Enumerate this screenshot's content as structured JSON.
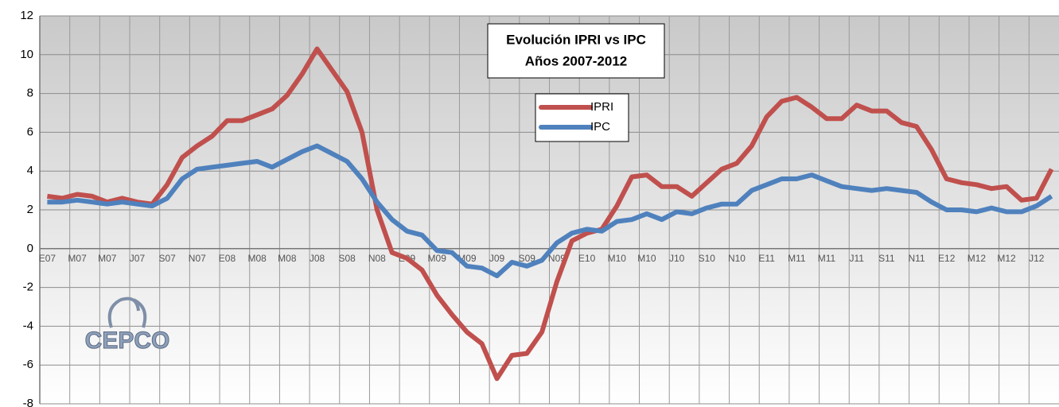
{
  "chart_data": {
    "type": "line",
    "title": "Evolución IPRI vs IPC",
    "subtitle": "Años 2007-2012",
    "categories": [
      "E07",
      null,
      "M07",
      null,
      "M07",
      null,
      "J07",
      null,
      "S07",
      null,
      "N07",
      null,
      "E08",
      null,
      "M08",
      null,
      "M08",
      null,
      "J08",
      null,
      "S08",
      null,
      "N08",
      null,
      "E09",
      null,
      "M09",
      null,
      "M09",
      null,
      "J09",
      null,
      "S09",
      null,
      "N09",
      null,
      "E10",
      null,
      "M10",
      null,
      "M10",
      null,
      "J10",
      null,
      "S10",
      null,
      "N10",
      null,
      "E11",
      null,
      "M11",
      null,
      "M11",
      null,
      "J11",
      null,
      "S11",
      null,
      "N11",
      null,
      "E12",
      null,
      "M12",
      null,
      "M12",
      null,
      "J12",
      null
    ],
    "series": [
      {
        "name": "IPRI",
        "color": "#c0504d",
        "values": [
          2.7,
          2.6,
          2.8,
          2.7,
          2.4,
          2.6,
          2.4,
          2.3,
          3.3,
          4.7,
          5.3,
          5.8,
          6.6,
          6.6,
          6.9,
          7.2,
          7.9,
          9.0,
          10.3,
          9.2,
          8.1,
          6.0,
          2.0,
          -0.2,
          -0.5,
          -1.1,
          -2.4,
          -3.4,
          -4.3,
          -4.9,
          -6.7,
          -5.5,
          -5.4,
          -4.3,
          -1.7,
          0.4,
          0.8,
          1.0,
          2.2,
          3.7,
          3.8,
          3.2,
          3.2,
          2.7,
          3.4,
          4.1,
          4.4,
          5.3,
          6.8,
          7.6,
          7.8,
          7.3,
          6.7,
          6.7,
          7.4,
          7.1,
          7.1,
          6.5,
          6.3,
          5.1,
          3.6,
          3.4,
          3.3,
          3.1,
          3.2,
          2.5,
          2.6,
          4.1
        ]
      },
      {
        "name": "IPC",
        "color": "#4f81bd",
        "values": [
          2.4,
          2.4,
          2.5,
          2.4,
          2.3,
          2.4,
          2.3,
          2.2,
          2.6,
          3.6,
          4.1,
          4.2,
          4.3,
          4.4,
          4.5,
          4.2,
          4.6,
          5.0,
          5.3,
          4.9,
          4.5,
          3.6,
          2.4,
          1.5,
          0.9,
          0.7,
          -0.1,
          -0.2,
          -0.9,
          -1.0,
          -1.4,
          -0.7,
          -0.9,
          -0.6,
          0.3,
          0.8,
          1.0,
          0.9,
          1.4,
          1.5,
          1.8,
          1.5,
          1.9,
          1.8,
          2.1,
          2.3,
          2.3,
          3.0,
          3.3,
          3.6,
          3.6,
          3.8,
          3.5,
          3.2,
          3.1,
          3.0,
          3.1,
          3.0,
          2.9,
          2.4,
          2.0,
          2.0,
          1.9,
          2.1,
          1.9,
          1.9,
          2.2,
          2.7
        ]
      }
    ],
    "ylim": [
      -8,
      12
    ],
    "yticks": [
      -8,
      -6,
      -4,
      -2,
      0,
      2,
      4,
      6,
      8,
      10,
      12
    ],
    "grid": true,
    "legend": "top-center"
  },
  "logo": "CEPCO"
}
